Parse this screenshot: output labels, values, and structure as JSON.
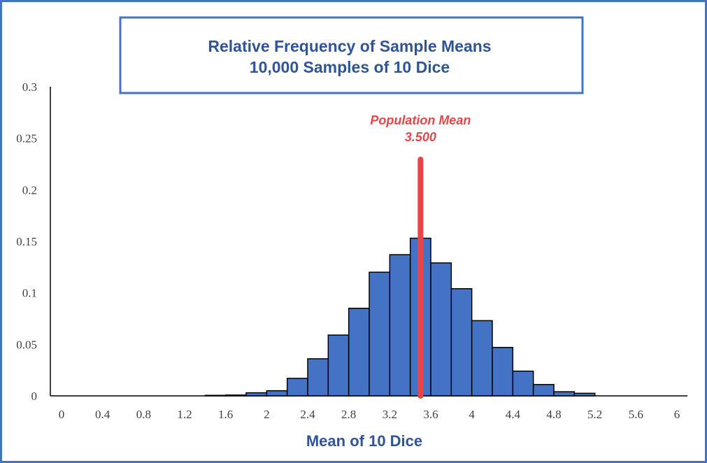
{
  "chart_data": {
    "type": "bar",
    "title": "Relative Frequency of Sample Means",
    "subtitle": "10,000 Samples of 10 Dice",
    "xlabel": "Mean of 10 Dice",
    "ylabel": "",
    "xlim": [
      0,
      6
    ],
    "ylim": [
      0,
      0.3
    ],
    "x_ticks": [
      "0",
      "0.4",
      "0.8",
      "1.2",
      "1.6",
      "2",
      "2.4",
      "2.8",
      "3.2",
      "3.6",
      "4",
      "4.4",
      "4.8",
      "5.2",
      "5.6",
      "6"
    ],
    "y_ticks": [
      "0",
      "0.05",
      "0.1",
      "0.15",
      "0.2",
      "0.25",
      "0.3"
    ],
    "bin_width": 0.2,
    "bins": [
      {
        "start": 1.4,
        "value": 0.0005
      },
      {
        "start": 1.6,
        "value": 0.0008
      },
      {
        "start": 1.8,
        "value": 0.003
      },
      {
        "start": 2.0,
        "value": 0.005
      },
      {
        "start": 2.2,
        "value": 0.017
      },
      {
        "start": 2.4,
        "value": 0.036
      },
      {
        "start": 2.6,
        "value": 0.059
      },
      {
        "start": 2.8,
        "value": 0.085
      },
      {
        "start": 3.0,
        "value": 0.12
      },
      {
        "start": 3.2,
        "value": 0.137
      },
      {
        "start": 3.4,
        "value": 0.153
      },
      {
        "start": 3.6,
        "value": 0.129
      },
      {
        "start": 3.8,
        "value": 0.104
      },
      {
        "start": 4.0,
        "value": 0.073
      },
      {
        "start": 4.2,
        "value": 0.047
      },
      {
        "start": 4.4,
        "value": 0.024
      },
      {
        "start": 4.6,
        "value": 0.011
      },
      {
        "start": 4.8,
        "value": 0.004
      },
      {
        "start": 5.0,
        "value": 0.0025
      }
    ],
    "reference_line": {
      "label": "Population Mean",
      "value_label": "3.500",
      "x": 3.5
    },
    "colors": {
      "bar_fill": "#4472C4",
      "bar_stroke": "#000000",
      "reference_line": "#E8454B",
      "title": "#2F5597",
      "frame": "#4472C4"
    }
  }
}
